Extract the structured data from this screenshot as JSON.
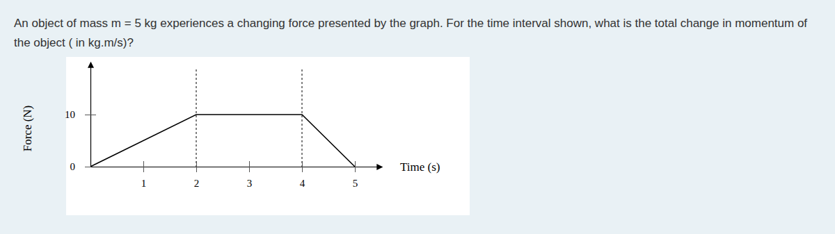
{
  "chart_data": {
    "type": "line",
    "title": "An object of mass m = 5 kg experiences a changing force presented by the graph. For the time interval shown, what is the total change in momentum of the object ( in kg.m/s)?",
    "x": [
      0,
      2,
      4,
      5
    ],
    "values": [
      0,
      10,
      10,
      0
    ],
    "color": "#000000",
    "xlabel": "Time (s)",
    "ylabel": "Force (N)",
    "xlim": [
      0,
      5.5
    ],
    "ylim": [
      0,
      20
    ],
    "xticks": [
      1,
      2,
      3,
      4,
      5
    ],
    "yticks": [
      0,
      10
    ],
    "grid": false
  }
}
